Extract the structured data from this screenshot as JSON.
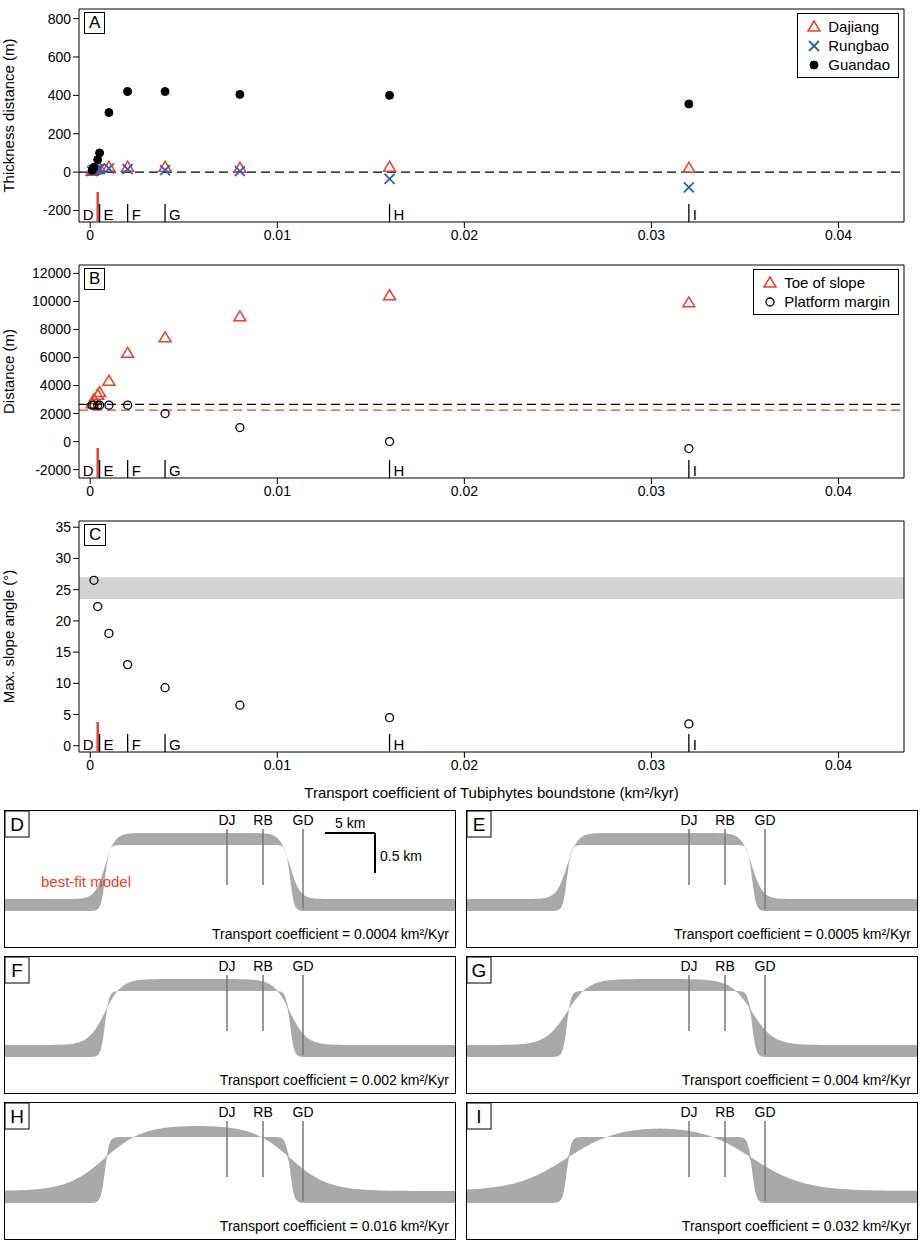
{
  "chart_data": [
    {
      "type": "scatter",
      "panel_label": "A",
      "y_label": "Thickness distance (m)",
      "xlim": [
        -0.0006,
        0.0435
      ],
      "xticks": [
        0,
        0.01,
        0.02,
        0.03,
        0.04
      ],
      "ylim": [
        -260,
        850
      ],
      "yticks": [
        -200,
        0,
        200,
        400,
        600,
        800
      ],
      "legend": "upper right",
      "series": [
        {
          "name": "Dajiang",
          "color": "#e8412c",
          "marker": "triangle-open",
          "x": [
            0.0001,
            0.0002,
            0.0004,
            0.0005,
            0.001,
            0.002,
            0.004,
            0.008,
            0.016,
            0.032
          ],
          "values": [
            5,
            10,
            15,
            20,
            25,
            25,
            25,
            20,
            25,
            20
          ]
        },
        {
          "name": "Rungbao",
          "color": "#2f5fb3",
          "marker": "x",
          "x": [
            0.0001,
            0.0002,
            0.0004,
            0.0005,
            0.001,
            0.002,
            0.004,
            0.008,
            0.016,
            0.032
          ],
          "values": [
            5,
            10,
            15,
            15,
            20,
            15,
            10,
            5,
            -35,
            -80
          ]
        },
        {
          "name": "Guandao",
          "color": "#000000",
          "marker": "circle",
          "x": [
            0.0001,
            0.0002,
            0.0004,
            0.0005,
            0.001,
            0.002,
            0.004,
            0.008,
            0.016,
            0.032
          ],
          "values": [
            10,
            25,
            65,
            100,
            310,
            420,
            420,
            405,
            400,
            355
          ]
        }
      ],
      "reference_lines": [
        {
          "y": 0,
          "color": "#000000",
          "line_style": "dashed"
        }
      ],
      "annotations": [
        {
          "text": "D",
          "x": 0.0004,
          "color": "#e8412c"
        },
        {
          "text": "E",
          "x": 0.0005,
          "color": "#000000"
        },
        {
          "text": "F",
          "x": 0.002,
          "color": "#000000"
        },
        {
          "text": "G",
          "x": 0.004,
          "color": "#000000"
        },
        {
          "text": "H",
          "x": 0.016,
          "color": "#000000"
        },
        {
          "text": "I",
          "x": 0.032,
          "color": "#000000"
        }
      ]
    },
    {
      "type": "scatter",
      "panel_label": "B",
      "y_label": "Distance (m)",
      "xlim": [
        -0.0006,
        0.0435
      ],
      "xticks": [
        0,
        0.01,
        0.02,
        0.03,
        0.04
      ],
      "ylim": [
        -2600,
        12600
      ],
      "yticks": [
        -2000,
        0,
        2000,
        4000,
        6000,
        8000,
        10000,
        12000
      ],
      "legend": "upper right",
      "series": [
        {
          "name": "Toe of slope",
          "color": "#e8412c",
          "marker": "triangle-open",
          "x": [
            0.0001,
            0.0002,
            0.0004,
            0.0005,
            0.001,
            0.002,
            0.004,
            0.008,
            0.016,
            0.032
          ],
          "values": [
            2700,
            3000,
            3300,
            3500,
            4300,
            6300,
            7400,
            8900,
            10400,
            9900
          ]
        },
        {
          "name": "Platform margin",
          "color": "#000000",
          "marker": "circle-open",
          "x": [
            0.0001,
            0.0002,
            0.0004,
            0.0005,
            0.001,
            0.002,
            0.004,
            0.008,
            0.016,
            0.032
          ],
          "values": [
            2600,
            2600,
            2600,
            2600,
            2600,
            2600,
            2000,
            1000,
            0,
            -500
          ]
        }
      ],
      "reference_lines": [
        {
          "y": 2650,
          "color": "#000000",
          "line_style": "dashed"
        },
        {
          "y": 2250,
          "color": "#e8412c",
          "line_style": "dashed"
        }
      ],
      "annotations": [
        {
          "text": "D",
          "x": 0.0004,
          "color": "#e8412c"
        },
        {
          "text": "E",
          "x": 0.0005,
          "color": "#000000"
        },
        {
          "text": "F",
          "x": 0.002,
          "color": "#000000"
        },
        {
          "text": "G",
          "x": 0.004,
          "color": "#000000"
        },
        {
          "text": "H",
          "x": 0.016,
          "color": "#000000"
        },
        {
          "text": "I",
          "x": 0.032,
          "color": "#000000"
        }
      ]
    },
    {
      "type": "scatter",
      "panel_label": "C",
      "y_label": "Max. slope angle (°)",
      "x_label": "Transport coefficient of Tubiphytes boundstone (km²/kyr)",
      "xlim": [
        -0.0006,
        0.0435
      ],
      "xticks": [
        0,
        0.01,
        0.02,
        0.03,
        0.04
      ],
      "ylim": [
        -1,
        36
      ],
      "yticks": [
        0,
        5,
        10,
        15,
        20,
        25,
        30,
        35
      ],
      "series": [
        {
          "name": "Max. slope angle",
          "color": "#000000",
          "marker": "circle-open",
          "x": [
            0.0002,
            0.0004,
            0.001,
            0.002,
            0.004,
            0.008,
            0.016,
            0.032
          ],
          "values": [
            26.5,
            22.3,
            18,
            13,
            9.3,
            6.5,
            4.5,
            3.5
          ]
        }
      ],
      "band": {
        "y1": 23.5,
        "y2": 27,
        "color": "#d3d3d3"
      },
      "annotations": [
        {
          "text": "D",
          "x": 0.0004,
          "color": "#e8412c"
        },
        {
          "text": "E",
          "x": 0.0005,
          "color": "#000000"
        },
        {
          "text": "F",
          "x": 0.002,
          "color": "#000000"
        },
        {
          "text": "G",
          "x": 0.004,
          "color": "#000000"
        },
        {
          "text": "H",
          "x": 0.016,
          "color": "#000000"
        },
        {
          "text": "I",
          "x": 0.032,
          "color": "#000000"
        }
      ]
    }
  ],
  "model_sections": {
    "wells": [
      "DJ",
      "RB",
      "GD"
    ],
    "scale_bar": {
      "horizontal": "5 km",
      "vertical": "0.5 km"
    },
    "panels": [
      {
        "panel_label": "D",
        "transport_coefficient": 0.0004,
        "caption": "Transport coefficient = 0.0004 km²/Kyr",
        "note": "best-fit model",
        "note_color": "#e8412c"
      },
      {
        "panel_label": "E",
        "transport_coefficient": 0.0005,
        "caption": "Transport coefficient = 0.0005 km²/Kyr"
      },
      {
        "panel_label": "F",
        "transport_coefficient": 0.002,
        "caption": "Transport coefficient = 0.002 km²/Kyr"
      },
      {
        "panel_label": "G",
        "transport_coefficient": 0.004,
        "caption": "Transport coefficient = 0.004 km²/Kyr"
      },
      {
        "panel_label": "H",
        "transport_coefficient": 0.016,
        "caption": "Transport coefficient = 0.016 km²/Kyr"
      },
      {
        "panel_label": "I",
        "transport_coefficient": 0.032,
        "caption": "Transport coefficient = 0.032 km²/Kyr"
      }
    ]
  }
}
